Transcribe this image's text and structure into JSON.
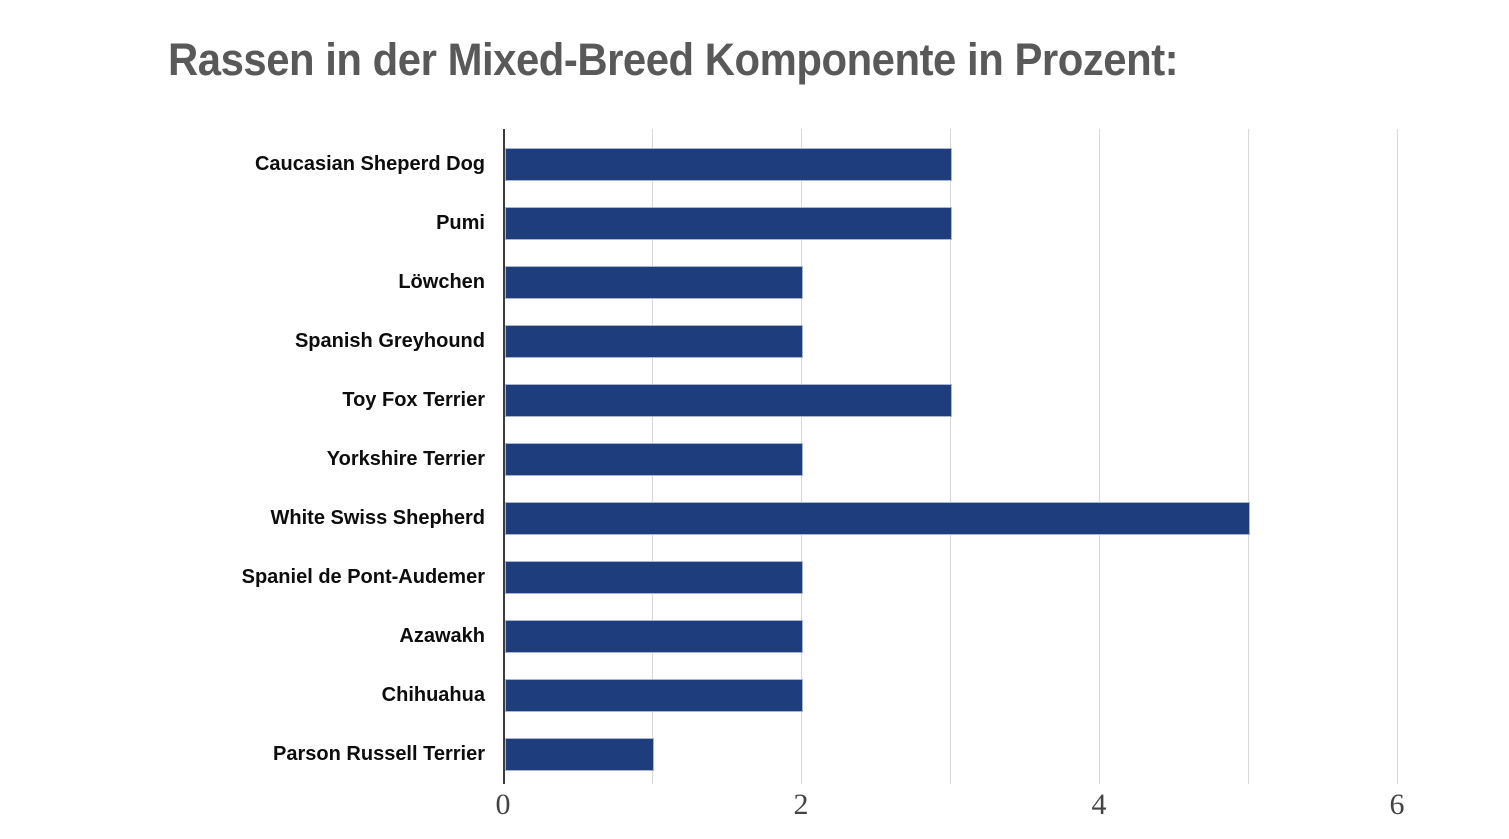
{
  "chart_data": {
    "type": "bar",
    "orientation": "horizontal",
    "title": "Rassen in der Mixed-Breed Komponente in Prozent:",
    "categories": [
      "Caucasian Sheperd Dog",
      "Pumi",
      "Löwchen",
      "Spanish Greyhound",
      "Toy Fox Terrier",
      "Yorkshire Terrier",
      "White Swiss Shepherd",
      "Spaniel de Pont-Audemer",
      "Azawakh",
      "Chihuahua",
      "Parson Russell Terrier"
    ],
    "values": [
      3,
      3,
      2,
      2,
      3,
      2,
      5,
      2,
      2,
      2,
      1
    ],
    "xlabel": "",
    "ylabel": "",
    "xlim": [
      0,
      6.5
    ],
    "xticks": [
      0,
      2,
      4,
      6
    ],
    "gridline_interval": 1,
    "grid": true,
    "legend": false,
    "colors": {
      "bar_fill": "#1e3d7c",
      "bar_edge": "#a9b6d2",
      "gridline": "#d8d8d8",
      "axis_line": "#3c3c3c",
      "tick_label": "#444444",
      "category_label": "#0d0d0d",
      "title": "#595959",
      "background": "#ffffff"
    }
  }
}
